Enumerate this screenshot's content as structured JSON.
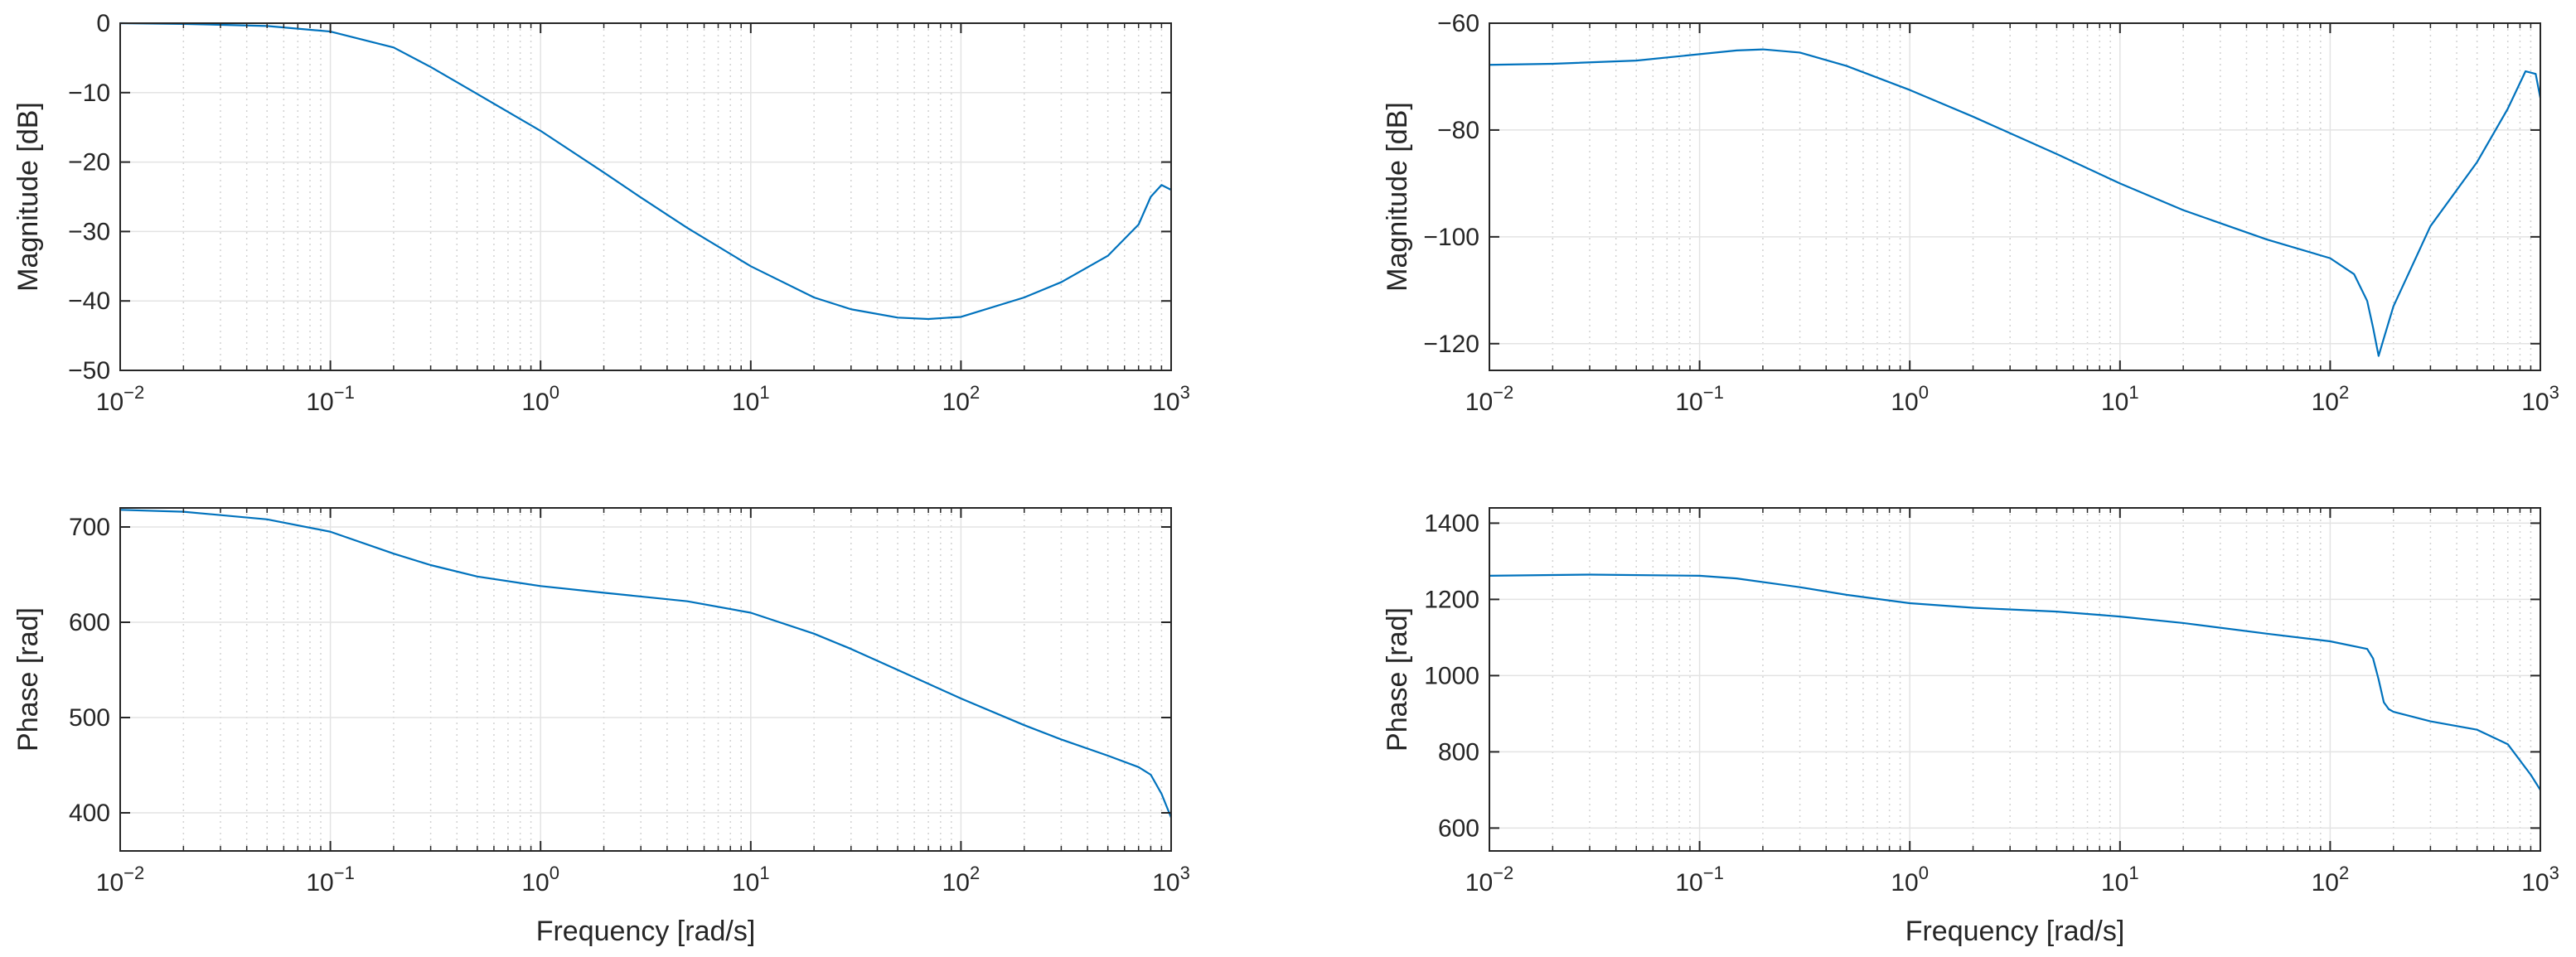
{
  "figure": {
    "line_color": "#0072BD",
    "grid_color": "#E3E3E3",
    "axes_color": "#262626",
    "background": "#FFFFFF"
  },
  "chart_data": [
    {
      "type": "line",
      "id": "left-magnitude",
      "title": "",
      "xlabel": "",
      "ylabel": "Magnitude [dB]",
      "xscale": "log",
      "xlim": [
        0.01,
        1000
      ],
      "ylim": [
        -50,
        0
      ],
      "yticks": [
        0,
        -10,
        -20,
        -30,
        -40,
        -50
      ],
      "ytick_labels": [
        "0",
        "−10",
        "−20",
        "−30",
        "−40",
        "−50"
      ],
      "grid": true,
      "series": [
        {
          "x": [
            0.01,
            0.02,
            0.05,
            0.1,
            0.2,
            0.3,
            0.5,
            1,
            2,
            3,
            5,
            10,
            20,
            30,
            50,
            70,
            100,
            200,
            300,
            500,
            700,
            800,
            900,
            1000
          ],
          "y": [
            0,
            -0.1,
            -0.4,
            -1.2,
            -3.5,
            -6.3,
            -10.2,
            -15.5,
            -21.5,
            -25.1,
            -29.5,
            -35,
            -39.5,
            -41.2,
            -42.4,
            -42.6,
            -42.3,
            -39.5,
            -37.3,
            -33.5,
            -29,
            -25,
            -23.3,
            -24
          ]
        }
      ]
    },
    {
      "type": "line",
      "id": "left-phase",
      "title": "",
      "xlabel": "Frequency [rad/s]",
      "ylabel": "Phase [rad]",
      "xscale": "log",
      "xlim": [
        0.01,
        1000
      ],
      "ylim": [
        360,
        720
      ],
      "yticks": [
        700,
        600,
        500,
        400
      ],
      "ytick_labels": [
        "700",
        "600",
        "500",
        "400"
      ],
      "grid": true,
      "series": [
        {
          "x": [
            0.01,
            0.02,
            0.05,
            0.1,
            0.2,
            0.3,
            0.5,
            1,
            2,
            3,
            5,
            10,
            20,
            30,
            50,
            100,
            200,
            300,
            500,
            700,
            800,
            900,
            1000
          ],
          "y": [
            718,
            716,
            708,
            695,
            672,
            660,
            648,
            638,
            631,
            627,
            622,
            610,
            588,
            572,
            550,
            520,
            492,
            477,
            460,
            448,
            440,
            420,
            395
          ]
        }
      ]
    },
    {
      "type": "line",
      "id": "right-magnitude",
      "title": "",
      "xlabel": "",
      "ylabel": "Magnitude [dB]",
      "xscale": "log",
      "xlim": [
        0.01,
        1000
      ],
      "ylim": [
        -125,
        -60
      ],
      "yticks": [
        -60,
        -80,
        -100,
        -120
      ],
      "ytick_labels": [
        "−60",
        "−80",
        "−100",
        "−120"
      ],
      "grid": true,
      "series": [
        {
          "x": [
            0.01,
            0.02,
            0.05,
            0.1,
            0.15,
            0.2,
            0.3,
            0.5,
            1,
            2,
            5,
            10,
            20,
            50,
            100,
            130,
            150,
            160,
            170,
            180,
            200,
            300,
            500,
            700,
            850,
            950,
            1000
          ],
          "y": [
            -67.8,
            -67.6,
            -67,
            -65.8,
            -65.1,
            -64.9,
            -65.5,
            -68,
            -72.5,
            -77.5,
            -84.5,
            -90,
            -95,
            -100.5,
            -104,
            -107,
            -112,
            -117,
            -122.3,
            -119,
            -113,
            -98,
            -86,
            -76,
            -69,
            -69.5,
            -74
          ]
        }
      ]
    },
    {
      "type": "line",
      "id": "right-phase",
      "title": "",
      "xlabel": "Frequency [rad/s]",
      "ylabel": "Phase [rad]",
      "xscale": "log",
      "xlim": [
        0.01,
        1000
      ],
      "ylim": [
        540,
        1440
      ],
      "yticks": [
        1400,
        1200,
        1000,
        800,
        600
      ],
      "ytick_labels": [
        "1400",
        "1200",
        "1000",
        "800",
        "600"
      ],
      "grid": true,
      "series": [
        {
          "x": [
            0.01,
            0.03,
            0.1,
            0.15,
            0.3,
            0.5,
            1,
            2,
            5,
            10,
            20,
            50,
            100,
            150,
            160,
            170,
            180,
            190,
            200,
            300,
            500,
            700,
            900,
            1000
          ],
          "y": [
            1262,
            1265,
            1262,
            1255,
            1232,
            1212,
            1190,
            1178,
            1168,
            1155,
            1138,
            1110,
            1090,
            1070,
            1045,
            990,
            930,
            912,
            905,
            880,
            858,
            820,
            740,
            700
          ]
        }
      ]
    }
  ],
  "xtick_labels": [
    {
      "base": "10",
      "exp": "−2"
    },
    {
      "base": "10",
      "exp": "−1"
    },
    {
      "base": "10",
      "exp": "0"
    },
    {
      "base": "10",
      "exp": "1"
    },
    {
      "base": "10",
      "exp": "2"
    },
    {
      "base": "10",
      "exp": "3"
    }
  ]
}
